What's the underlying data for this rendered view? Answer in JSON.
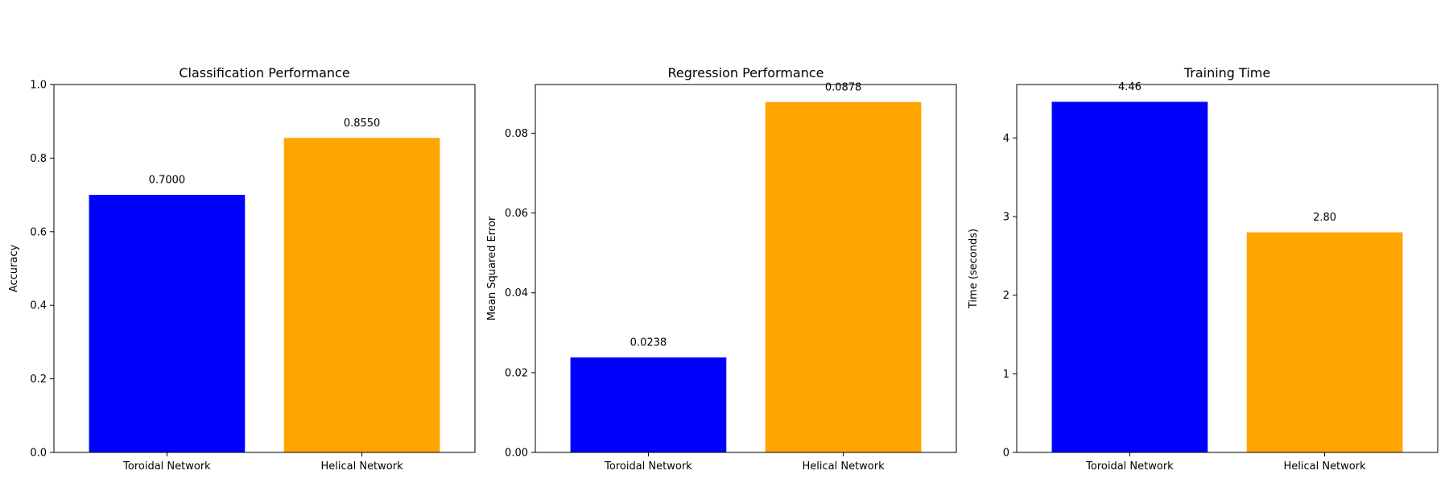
{
  "chart_data": [
    {
      "type": "bar",
      "title": "Classification Performance",
      "xlabel": "",
      "ylabel": "Accuracy",
      "categories": [
        "Toroidal Network",
        "Helical Network"
      ],
      "values": [
        0.7,
        0.855
      ],
      "value_labels": [
        "0.7000",
        "0.8550"
      ],
      "colors": [
        "#0000ff",
        "#ffa500"
      ],
      "ylim": [
        0,
        1.0
      ],
      "yticks": [
        0,
        0.2,
        0.4,
        0.6,
        0.8,
        1.0
      ],
      "ytick_labels": [
        "0.0",
        "0.2",
        "0.4",
        "0.6",
        "0.8",
        "1.0"
      ],
      "grid": false
    },
    {
      "type": "bar",
      "title": "Regression Performance",
      "xlabel": "",
      "ylabel": "Mean Squared Error",
      "categories": [
        "Toroidal Network",
        "Helical Network"
      ],
      "values": [
        0.0238,
        0.0878
      ],
      "value_labels": [
        "0.0238",
        "0.0878"
      ],
      "colors": [
        "#0000ff",
        "#ffa500"
      ],
      "ylim": [
        0,
        0.0922
      ],
      "yticks": [
        0,
        0.02,
        0.04,
        0.06,
        0.08
      ],
      "ytick_labels": [
        "0.00",
        "0.02",
        "0.04",
        "0.06",
        "0.08"
      ],
      "grid": false
    },
    {
      "type": "bar",
      "title": "Training Time",
      "xlabel": "",
      "ylabel": "Time (seconds)",
      "categories": [
        "Toroidal Network",
        "Helical Network"
      ],
      "values": [
        4.46,
        2.8
      ],
      "value_labels": [
        "4.46",
        "2.80"
      ],
      "colors": [
        "#0000ff",
        "#ffa500"
      ],
      "ylim": [
        0,
        4.68
      ],
      "yticks": [
        0,
        1,
        2,
        3,
        4
      ],
      "ytick_labels": [
        "0",
        "1",
        "2",
        "3",
        "4"
      ],
      "grid": false
    }
  ]
}
